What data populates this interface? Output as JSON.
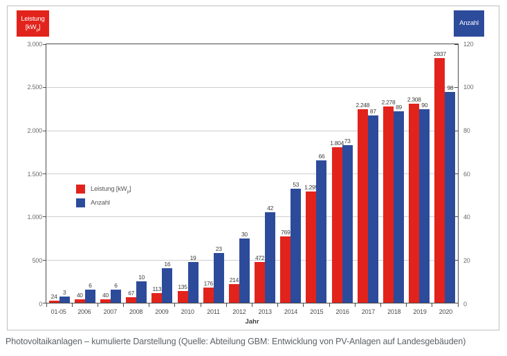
{
  "caption": "Photovoltaikanlagen – kumulierte Darstellung (Quelle: Abteilung GBM: Entwicklung von PV-Anlagen auf Landesgebäuden)",
  "axes": {
    "left_header": {
      "line1": "Leistung",
      "line2_pre": "[kW",
      "line2_sub": "p",
      "line2_post": "]"
    },
    "right_header": "Anzahl",
    "left_ticks": [
      "3.000",
      "2.500",
      "2.000",
      "1.500",
      "1.000",
      "500",
      "0"
    ],
    "right_ticks": [
      "120",
      "100",
      "80",
      "60",
      "40",
      "20",
      "0"
    ],
    "xlabel": "Jahr"
  },
  "legend": {
    "leistung_pre": "Leistung [kW",
    "leistung_sub": "p",
    "leistung_post": "]",
    "anzahl": "Anzahl"
  },
  "colors": {
    "red": "#e2231c",
    "blue": "#2d4b9b"
  },
  "chart_data": {
    "type": "bar",
    "title": "",
    "xlabel": "Jahr",
    "grid": true,
    "legend_position": "middle-left",
    "categories": [
      "01-05",
      "2006",
      "2007",
      "2008",
      "2009",
      "2010",
      "2011",
      "2012",
      "2013",
      "2014",
      "2015",
      "2016",
      "2017",
      "2018",
      "2019",
      "2020"
    ],
    "series": [
      {
        "name": "Leistung [kWp]",
        "color": "#e2231c",
        "axis": "left",
        "values": [
          24,
          40,
          40,
          67,
          113,
          135,
          176,
          214,
          472,
          769,
          1295,
          1804,
          2248,
          2278,
          2308,
          2837
        ],
        "labels": [
          "24",
          "40",
          "40",
          "67",
          "113",
          "135",
          "176",
          "214",
          "472",
          "769",
          "1.295",
          "1.804",
          "2.248",
          "2.278",
          "2.308",
          "2837"
        ]
      },
      {
        "name": "Anzahl",
        "color": "#2d4b9b",
        "axis": "right",
        "values": [
          3,
          6,
          6,
          10,
          16,
          19,
          23,
          30,
          42,
          53,
          66,
          73,
          87,
          89,
          90,
          98
        ],
        "labels": [
          "3",
          "6",
          "6",
          "10",
          "16",
          "19",
          "23",
          "30",
          "42",
          "53",
          "66",
          "73",
          "87",
          "89",
          "90",
          "98"
        ]
      }
    ],
    "left_axis": {
      "label": "Leistung [kWp]",
      "range": [
        0,
        3000
      ],
      "tick_step": 500
    },
    "right_axis": {
      "label": "Anzahl",
      "range": [
        0,
        120
      ],
      "tick_step": 20
    }
  }
}
